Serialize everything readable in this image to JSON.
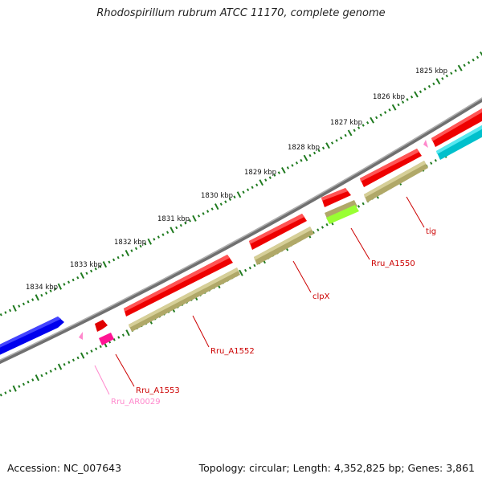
{
  "title": "Rhodospirillum rubrum ATCC 11170, complete genome",
  "footer": {
    "accession": "Accession: NC_007643",
    "summary": "Topology: circular; Length: 4,352,825 bp; Genes: 3,861"
  },
  "colors": {
    "backbone": "#808080",
    "ruler_ticks": "#1f7a1f",
    "forward_cds": "#ff0000",
    "reverse_cds": "#c0b878",
    "blue_feature": "#0000ff",
    "cyan_feature": "#00c8d2",
    "magenta_feature": "#ff1493",
    "green_feature": "#99ff33",
    "pink_feature": "#ff88cc",
    "label_red": "#cc0000",
    "label_pink": "#ff88cc"
  },
  "scale_labels": [
    "1834 kbp",
    "1833 kbp",
    "1832 kbp",
    "1831 kbp",
    "1830 kbp",
    "1829 kbp",
    "1828 kbp",
    "1827 kbp",
    "1826 kbp",
    "1825 kbp"
  ],
  "gene_labels": [
    {
      "text": "Rru_AR0029",
      "color": "pink"
    },
    {
      "text": "Rru_A1553",
      "color": "red"
    },
    {
      "text": "Rru_A1552",
      "color": "red"
    },
    {
      "text": "clpX",
      "color": "red"
    },
    {
      "text": "Rru_A1550",
      "color": "red"
    },
    {
      "text": "tig",
      "color": "red"
    }
  ]
}
